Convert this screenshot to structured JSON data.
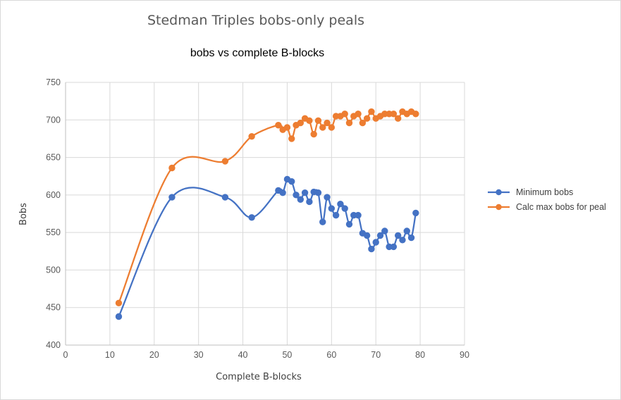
{
  "chart_data": {
    "type": "line",
    "title": "Stedman Triples bobs-only peals",
    "subtitle": "bobs vs complete B-blocks",
    "xlabel": "Complete B-blocks",
    "ylabel": "Bobs",
    "xlim": [
      0,
      90
    ],
    "ylim": [
      400,
      750
    ],
    "xticks": [
      0,
      10,
      20,
      30,
      40,
      50,
      60,
      70,
      80,
      90
    ],
    "yticks": [
      400,
      450,
      500,
      550,
      600,
      650,
      700,
      750
    ],
    "grid": true,
    "smooth": true,
    "legend_position": "right",
    "series": [
      {
        "name": "Minimum bobs",
        "color": "#4472c4",
        "points": [
          [
            12,
            438
          ],
          [
            24,
            597
          ],
          [
            36,
            597
          ],
          [
            42,
            570
          ],
          [
            48,
            606
          ],
          [
            49,
            603
          ],
          [
            50,
            621
          ],
          [
            51,
            618
          ],
          [
            52,
            600
          ],
          [
            53,
            594
          ],
          [
            54,
            603
          ],
          [
            55,
            591
          ],
          [
            56,
            604
          ],
          [
            57,
            603
          ],
          [
            58,
            564
          ],
          [
            59,
            597
          ],
          [
            60,
            582
          ],
          [
            61,
            573
          ],
          [
            62,
            588
          ],
          [
            63,
            582
          ],
          [
            64,
            561
          ],
          [
            65,
            573
          ],
          [
            66,
            573
          ],
          [
            67,
            549
          ],
          [
            68,
            546
          ],
          [
            69,
            528
          ],
          [
            70,
            537
          ],
          [
            71,
            546
          ],
          [
            72,
            552
          ],
          [
            73,
            531
          ],
          [
            74,
            531
          ],
          [
            75,
            546
          ],
          [
            76,
            540
          ],
          [
            77,
            552
          ],
          [
            78,
            543
          ],
          [
            79,
            576
          ]
        ]
      },
      {
        "name": "Calc max bobs for peal",
        "color": "#ed7d31",
        "points": [
          [
            12,
            456
          ],
          [
            24,
            636
          ],
          [
            36,
            645
          ],
          [
            42,
            678
          ],
          [
            48,
            693
          ],
          [
            49,
            687
          ],
          [
            50,
            690
          ],
          [
            51,
            675
          ],
          [
            52,
            693
          ],
          [
            53,
            696
          ],
          [
            54,
            702
          ],
          [
            55,
            699
          ],
          [
            56,
            681
          ],
          [
            57,
            699
          ],
          [
            58,
            690
          ],
          [
            59,
            696
          ],
          [
            60,
            690
          ],
          [
            61,
            705
          ],
          [
            62,
            705
          ],
          [
            63,
            708
          ],
          [
            64,
            696
          ],
          [
            65,
            705
          ],
          [
            66,
            708
          ],
          [
            67,
            696
          ],
          [
            68,
            702
          ],
          [
            69,
            711
          ],
          [
            70,
            702
          ],
          [
            71,
            705
          ],
          [
            72,
            708
          ],
          [
            73,
            708
          ],
          [
            74,
            708
          ],
          [
            75,
            702
          ],
          [
            76,
            711
          ],
          [
            77,
            708
          ],
          [
            78,
            711
          ],
          [
            79,
            708
          ]
        ]
      }
    ]
  }
}
